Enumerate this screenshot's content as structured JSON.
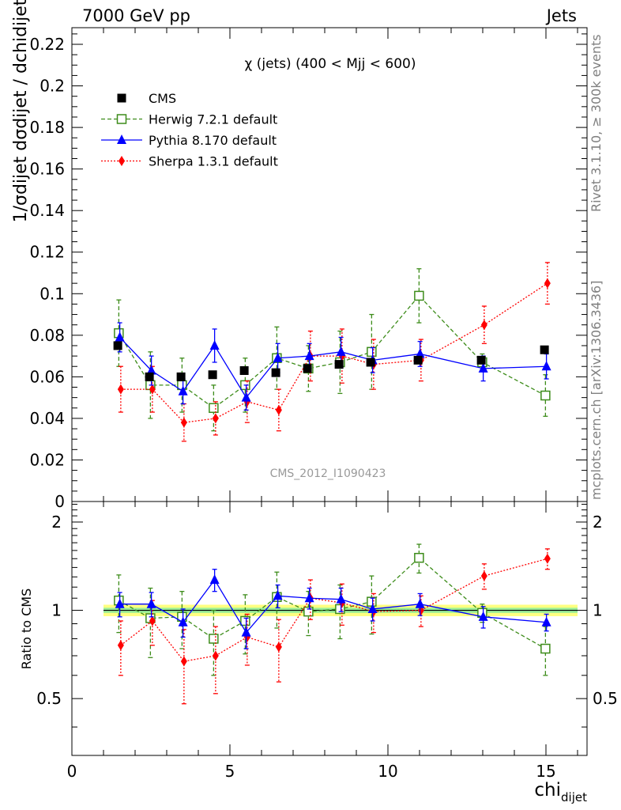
{
  "header": {
    "left": "7000 GeV pp",
    "right": "Jets"
  },
  "side_labels": {
    "rivet": "Rivet 3.1.10, ≥ 300k events",
    "mcplots": "mcplots.cern.ch [arXiv:1306.3436]"
  },
  "chart_data": {
    "type": "scatter",
    "title": "χ (jets) (400 < Mjj <  600)",
    "watermark": "CMS_2012_I1090423",
    "xlabel": "chi",
    "xlabel_sub": "dijet",
    "x_ticks": [
      "0",
      "5",
      "10",
      "15"
    ],
    "xlim": [
      0,
      16.3
    ],
    "main": {
      "ylabel": "1/σdijet dσdijet / dchidijet",
      "ylim": [
        0,
        0.228
      ],
      "y_ticks": [
        "0",
        "0.02",
        "0.04",
        "0.06",
        "0.08",
        "0.1",
        "0.12",
        "0.14",
        "0.16",
        "0.18",
        "0.2",
        "0.22"
      ]
    },
    "ratio": {
      "ylabel": "Ratio to CMS",
      "ylim": [
        0.32,
        2.35
      ],
      "log": true,
      "y_ticks": [
        "0.5",
        "1",
        "2"
      ],
      "band_inner": [
        0.98,
        1.02
      ],
      "band_outer": [
        0.955,
        1.045
      ]
    },
    "legend_position": "top-left",
    "series": [
      {
        "name": "CMS",
        "color": "#000000",
        "marker": "square-filled",
        "line": "none",
        "x": [
          1.5,
          2.5,
          3.5,
          4.5,
          5.5,
          6.5,
          7.5,
          8.5,
          9.5,
          11,
          13,
          15
        ],
        "y": [
          0.075,
          0.06,
          0.06,
          0.061,
          0.063,
          0.062,
          0.064,
          0.066,
          0.067,
          0.068,
          0.068,
          0.073
        ],
        "err": [
          0,
          0,
          0,
          0,
          0,
          0,
          0,
          0,
          0,
          0,
          0,
          0
        ],
        "ratio": [
          1,
          1,
          1,
          1,
          1,
          1,
          1,
          1,
          1,
          1,
          1,
          1
        ],
        "ratio_err": [
          0,
          0,
          0,
          0,
          0,
          0,
          0,
          0,
          0,
          0,
          0,
          0
        ]
      },
      {
        "name": "Herwig 7.2.1 default",
        "color": "#3d8c1a",
        "marker": "square-open",
        "line": "dashed",
        "x": [
          1.5,
          2.5,
          3.5,
          4.5,
          5.5,
          6.5,
          7.5,
          8.5,
          9.5,
          11,
          13,
          15
        ],
        "y": [
          0.081,
          0.056,
          0.056,
          0.045,
          0.056,
          0.069,
          0.064,
          0.067,
          0.072,
          0.099,
          0.067,
          0.051
        ],
        "err": [
          0.016,
          0.016,
          0.013,
          0.011,
          0.013,
          0.015,
          0.011,
          0.015,
          0.018,
          0.013,
          0.004,
          0.01
        ],
        "ratio": [
          1.08,
          0.94,
          0.95,
          0.8,
          0.92,
          1.11,
          0.99,
          1.01,
          1.07,
          1.51,
          0.98,
          0.74
        ],
        "ratio_err": [
          0.24,
          0.25,
          0.21,
          0.2,
          0.21,
          0.24,
          0.17,
          0.21,
          0.24,
          0.17,
          0.07,
          0.14
        ]
      },
      {
        "name": "Pythia 8.170 default",
        "color": "#0000ff",
        "marker": "triangle-filled",
        "line": "solid",
        "x": [
          1.5,
          2.5,
          3.5,
          4.5,
          5.5,
          6.5,
          7.5,
          8.5,
          9.5,
          11,
          13,
          15
        ],
        "y": [
          0.079,
          0.063,
          0.053,
          0.075,
          0.05,
          0.069,
          0.07,
          0.072,
          0.068,
          0.071,
          0.064,
          0.065
        ],
        "err": [
          0.007,
          0.007,
          0.006,
          0.008,
          0.006,
          0.007,
          0.006,
          0.007,
          0.006,
          0.006,
          0.006,
          0.006
        ],
        "ratio": [
          1.05,
          1.05,
          0.91,
          1.27,
          0.84,
          1.12,
          1.1,
          1.09,
          1.01,
          1.05,
          0.95,
          0.91
        ],
        "ratio_err": [
          0.1,
          0.1,
          0.1,
          0.11,
          0.1,
          0.1,
          0.09,
          0.1,
          0.09,
          0.09,
          0.08,
          0.06
        ]
      },
      {
        "name": "Sherpa 1.3.1 default",
        "color": "#ff0000",
        "marker": "diamond-filled",
        "line": "dotted",
        "x": [
          1.5,
          2.5,
          3.5,
          4.5,
          5.5,
          6.5,
          7.5,
          8.5,
          9.5,
          11,
          13,
          15
        ],
        "y": [
          0.054,
          0.054,
          0.038,
          0.04,
          0.048,
          0.044,
          0.07,
          0.07,
          0.066,
          0.068,
          0.085,
          0.105
        ],
        "err": [
          0.011,
          0.011,
          0.009,
          0.008,
          0.01,
          0.01,
          0.012,
          0.013,
          0.012,
          0.01,
          0.009,
          0.01
        ],
        "ratio": [
          0.76,
          0.92,
          0.67,
          0.7,
          0.81,
          0.75,
          1.1,
          1.06,
          0.99,
          1.0,
          1.31,
          1.5
        ],
        "ratio_err": [
          0.16,
          0.16,
          0.19,
          0.18,
          0.16,
          0.18,
          0.17,
          0.17,
          0.15,
          0.12,
          0.13,
          0.12
        ]
      }
    ]
  }
}
